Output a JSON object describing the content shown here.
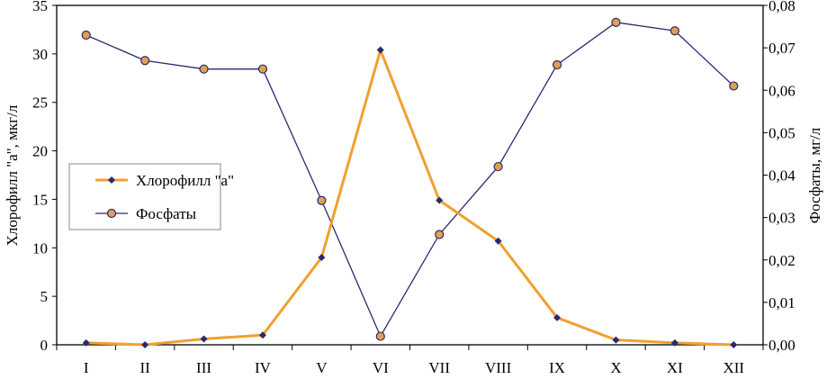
{
  "chart_data": {
    "type": "line",
    "categories": [
      "I",
      "II",
      "III",
      "IV",
      "V",
      "VI",
      "VII",
      "VIII",
      "IX",
      "X",
      "XI",
      "XII"
    ],
    "y_left": {
      "label": "Хлорофилл \"а\", мкг/л",
      "range": [
        0,
        35
      ],
      "ticks": [
        "0",
        "5",
        "10",
        "15",
        "20",
        "25",
        "30",
        "35"
      ],
      "tick_values": [
        0,
        5,
        10,
        15,
        20,
        25,
        30,
        35
      ]
    },
    "y_right": {
      "label": "Фосфаты, мг/л",
      "range": [
        0,
        0.08
      ],
      "ticks": [
        "0,00",
        "0,01",
        "0,02",
        "0,03",
        "0,04",
        "0,05",
        "0,06",
        "0,07",
        "0,08"
      ],
      "tick_values": [
        0,
        0.01,
        0.02,
        0.03,
        0.04,
        0.05,
        0.06,
        0.07,
        0.08
      ]
    },
    "series": [
      {
        "name": "Хлорофилл \"а\"",
        "axis": "left",
        "color": "#f0a030",
        "marker": "diamond",
        "marker_color": "#2a2a6e",
        "values": [
          0.2,
          0.0,
          0.6,
          1.0,
          9.0,
          30.4,
          14.9,
          10.7,
          2.8,
          0.5,
          0.2,
          0.0
        ]
      },
      {
        "name": "Фосфаты",
        "axis": "right",
        "color": "#2a2a6e",
        "marker": "circle",
        "marker_color": "#e0a050",
        "values": [
          0.073,
          0.067,
          0.065,
          0.065,
          0.034,
          0.002,
          0.026,
          0.042,
          0.066,
          0.076,
          0.074,
          0.061
        ]
      }
    ],
    "legend": "left-middle",
    "grid": false
  }
}
